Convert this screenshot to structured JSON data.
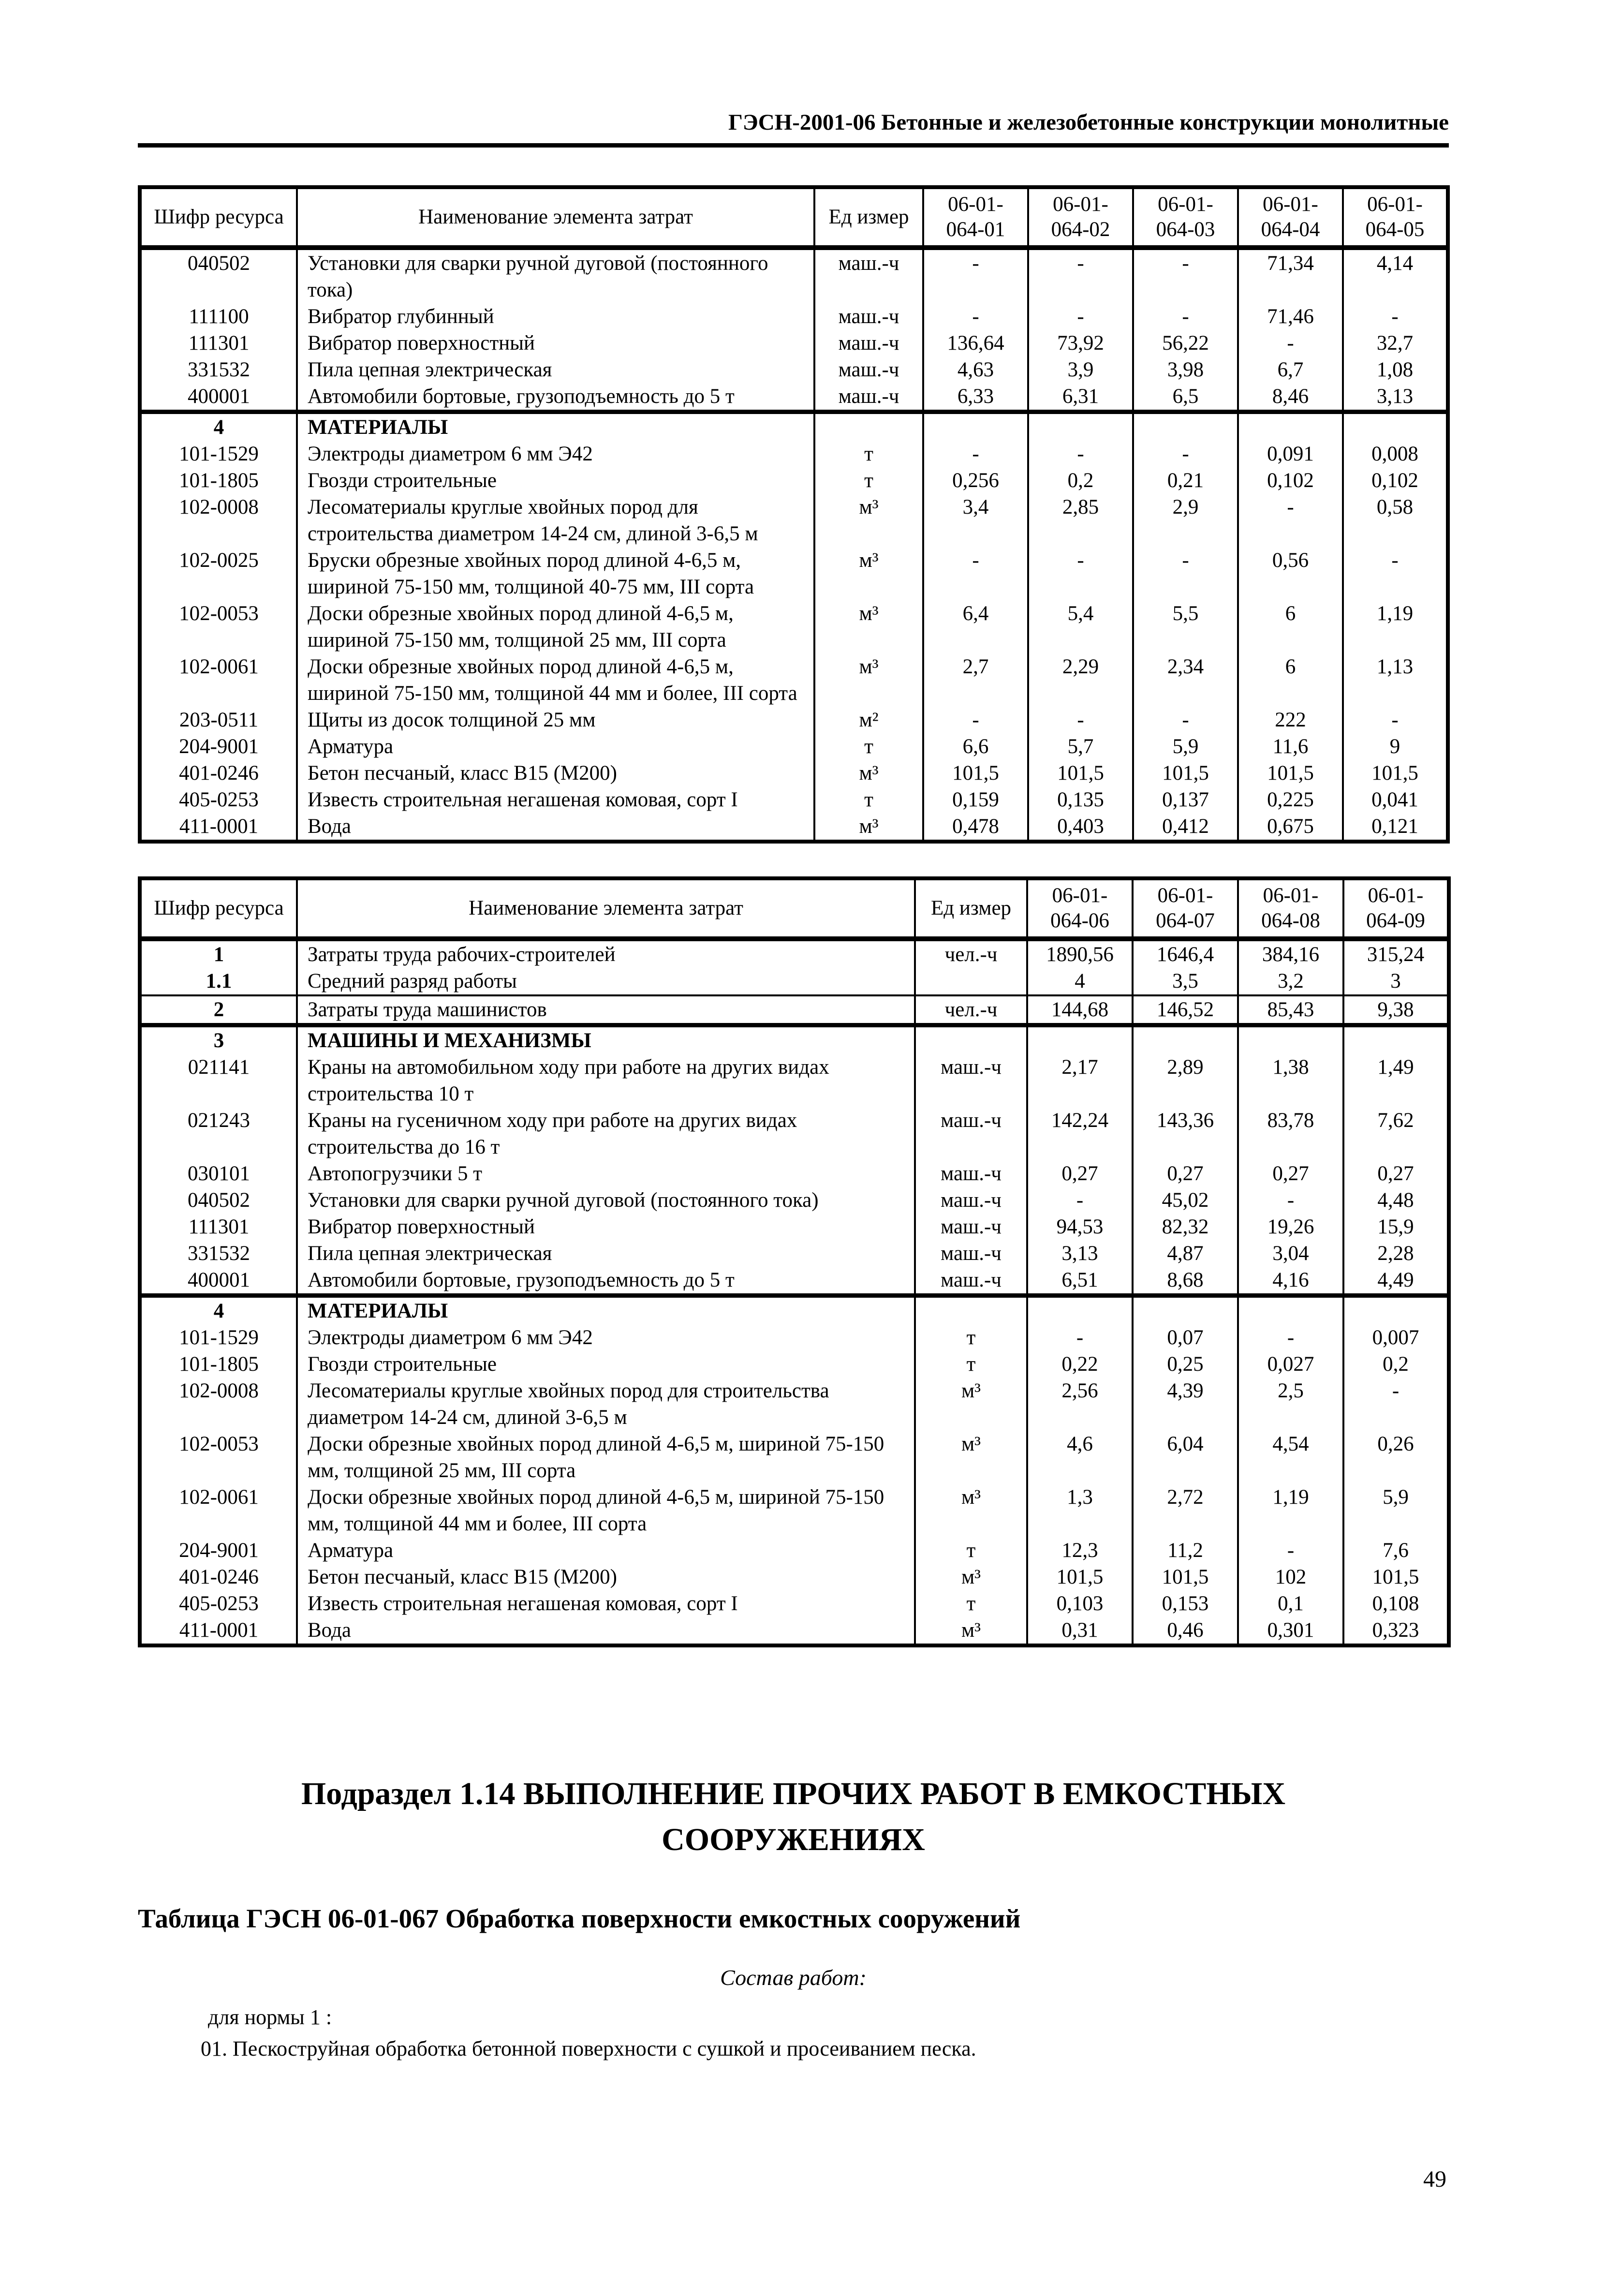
{
  "page": {
    "header_title": "ГЭСН-2001-06 Бетонные и железобетонные конструкции монолитные",
    "page_number": "49"
  },
  "tables": [
    {
      "headers": {
        "code": "Шифр ресурса",
        "name": "Наименование элемента затрат",
        "unit": "Ед измер"
      },
      "value_columns": [
        "06-01-\n064-01",
        "06-01-\n064-02",
        "06-01-\n064-03",
        "06-01-\n064-04",
        "06-01-\n064-05"
      ],
      "rows": [
        {
          "code": "040502",
          "name": "Установки для сварки ручной дуговой (постоянного тока)",
          "unit": "маш.-ч",
          "values": [
            "-",
            "-",
            "-",
            "71,34",
            "4,14"
          ]
        },
        {
          "code": "111100",
          "name": "Вибратор глубинный",
          "unit": "маш.-ч",
          "values": [
            "-",
            "-",
            "-",
            "71,46",
            "-"
          ]
        },
        {
          "code": "111301",
          "name": "Вибратор поверхностный",
          "unit": "маш.-ч",
          "values": [
            "136,64",
            "73,92",
            "56,22",
            "-",
            "32,7"
          ]
        },
        {
          "code": "331532",
          "name": "Пила цепная электрическая",
          "unit": "маш.-ч",
          "values": [
            "4,63",
            "3,9",
            "3,98",
            "6,7",
            "1,08"
          ]
        },
        {
          "code": "400001",
          "name": "Автомобили бортовые, грузоподъемность до 5 т",
          "unit": "маш.-ч",
          "values": [
            "6,33",
            "6,31",
            "6,5",
            "8,46",
            "3,13"
          ]
        },
        {
          "code": "4",
          "name": "МАТЕРИАЛЫ",
          "unit": "",
          "values": [
            "",
            "",
            "",
            "",
            ""
          ],
          "section": true,
          "border_top": "thick"
        },
        {
          "code": "101-1529",
          "name": "Электроды диаметром 6 мм Э42",
          "unit": "т",
          "values": [
            "-",
            "-",
            "-",
            "0,091",
            "0,008"
          ]
        },
        {
          "code": "101-1805",
          "name": "Гвозди строительные",
          "unit": "т",
          "values": [
            "0,256",
            "0,2",
            "0,21",
            "0,102",
            "0,102"
          ]
        },
        {
          "code": "102-0008",
          "name": "Лесоматериалы круглые хвойных пород для строительства диаметром 14-24 см, длиной 3-6,5 м",
          "unit": "м³",
          "values": [
            "3,4",
            "2,85",
            "2,9",
            "-",
            "0,58"
          ]
        },
        {
          "code": "102-0025",
          "name": "Бруски обрезные хвойных пород длиной 4-6,5 м, шириной 75-150 мм, толщиной 40-75 мм, III сорта",
          "unit": "м³",
          "values": [
            "-",
            "-",
            "-",
            "0,56",
            "-"
          ]
        },
        {
          "code": "102-0053",
          "name": "Доски обрезные хвойных пород длиной 4-6,5 м, шириной 75-150 мм, толщиной 25 мм, III сорта",
          "unit": "м³",
          "values": [
            "6,4",
            "5,4",
            "5,5",
            "6",
            "1,19"
          ]
        },
        {
          "code": "102-0061",
          "name": "Доски обрезные хвойных пород длиной 4-6,5 м, шириной 75-150 мм, толщиной 44 мм и более, III сорта",
          "unit": "м³",
          "values": [
            "2,7",
            "2,29",
            "2,34",
            "6",
            "1,13"
          ]
        },
        {
          "code": "203-0511",
          "name": "Щиты из досок толщиной 25 мм",
          "unit": "м²",
          "values": [
            "-",
            "-",
            "-",
            "222",
            "-"
          ]
        },
        {
          "code": "204-9001",
          "name": "Арматура",
          "unit": "т",
          "values": [
            "6,6",
            "5,7",
            "5,9",
            "11,6",
            "9"
          ]
        },
        {
          "code": "401-0246",
          "name": "Бетон песчаный, класс В15 (М200)",
          "unit": "м³",
          "values": [
            "101,5",
            "101,5",
            "101,5",
            "101,5",
            "101,5"
          ]
        },
        {
          "code": "405-0253",
          "name": "Известь строительная негашеная комовая, сорт I",
          "unit": "т",
          "values": [
            "0,159",
            "0,135",
            "0,137",
            "0,225",
            "0,041"
          ]
        },
        {
          "code": "411-0001",
          "name": "Вода",
          "unit": "м³",
          "values": [
            "0,478",
            "0,403",
            "0,412",
            "0,675",
            "0,121"
          ]
        }
      ]
    },
    {
      "headers": {
        "code": "Шифр ресурса",
        "name": "Наименование элемента затрат",
        "unit": "Ед измер"
      },
      "value_columns": [
        "06-01-\n064-06",
        "06-01-\n064-07",
        "06-01-\n064-08",
        "06-01-\n064-09"
      ],
      "rows": [
        {
          "code": "1",
          "name": "Затраты труда рабочих-строителей",
          "unit": "чел.-ч",
          "values": [
            "1890,56",
            "1646,4",
            "384,16",
            "315,24"
          ],
          "code_bold": true
        },
        {
          "code": "1.1",
          "name": "Средний разряд работы",
          "unit": "",
          "values": [
            "4",
            "3,5",
            "3,2",
            "3"
          ],
          "code_bold": true
        },
        {
          "code": "2",
          "name": "Затраты труда машинистов",
          "unit": "чел.-ч",
          "values": [
            "144,68",
            "146,52",
            "85,43",
            "9,38"
          ],
          "code_bold": true,
          "border_top": "thin"
        },
        {
          "code": "3",
          "name": "МАШИНЫ И МЕХАНИЗМЫ",
          "unit": "",
          "values": [
            "",
            "",
            "",
            ""
          ],
          "section": true,
          "border_top": "thick"
        },
        {
          "code": "021141",
          "name": "Краны на автомобильном ходу при работе на других видах строительства 10 т",
          "unit": "маш.-ч",
          "values": [
            "2,17",
            "2,89",
            "1,38",
            "1,49"
          ]
        },
        {
          "code": "021243",
          "name": "Краны на гусеничном ходу при работе на других видах строительства до 16 т",
          "unit": "маш.-ч",
          "values": [
            "142,24",
            "143,36",
            "83,78",
            "7,62"
          ]
        },
        {
          "code": "030101",
          "name": "Автопогрузчики 5 т",
          "unit": "маш.-ч",
          "values": [
            "0,27",
            "0,27",
            "0,27",
            "0,27"
          ]
        },
        {
          "code": "040502",
          "name": "Установки для сварки ручной дуговой (постоянного тока)",
          "unit": "маш.-ч",
          "values": [
            "-",
            "45,02",
            "-",
            "4,48"
          ]
        },
        {
          "code": "111301",
          "name": "Вибратор поверхностный",
          "unit": "маш.-ч",
          "values": [
            "94,53",
            "82,32",
            "19,26",
            "15,9"
          ]
        },
        {
          "code": "331532",
          "name": "Пила цепная электрическая",
          "unit": "маш.-ч",
          "values": [
            "3,13",
            "4,87",
            "3,04",
            "2,28"
          ]
        },
        {
          "code": "400001",
          "name": "Автомобили бортовые, грузоподъемность до 5 т",
          "unit": "маш.-ч",
          "values": [
            "6,51",
            "8,68",
            "4,16",
            "4,49"
          ]
        },
        {
          "code": "4",
          "name": "МАТЕРИАЛЫ",
          "unit": "",
          "values": [
            "",
            "",
            "",
            ""
          ],
          "section": true,
          "border_top": "thick"
        },
        {
          "code": "101-1529",
          "name": "Электроды диаметром 6 мм Э42",
          "unit": "т",
          "values": [
            "-",
            "0,07",
            "-",
            "0,007"
          ]
        },
        {
          "code": "101-1805",
          "name": "Гвозди строительные",
          "unit": "т",
          "values": [
            "0,22",
            "0,25",
            "0,027",
            "0,2"
          ]
        },
        {
          "code": "102-0008",
          "name": "Лесоматериалы круглые хвойных пород для строительства диаметром 14-24 см, длиной 3-6,5 м",
          "unit": "м³",
          "values": [
            "2,56",
            "4,39",
            "2,5",
            "-"
          ]
        },
        {
          "code": "102-0053",
          "name": "Доски обрезные хвойных пород длиной 4-6,5 м, шириной 75-150 мм, толщиной 25 мм, III сорта",
          "unit": "м³",
          "values": [
            "4,6",
            "6,04",
            "4,54",
            "0,26"
          ]
        },
        {
          "code": "102-0061",
          "name": "Доски обрезные хвойных пород длиной 4-6,5 м, шириной 75-150 мм, толщиной 44 мм и более, III сорта",
          "unit": "м³",
          "values": [
            "1,3",
            "2,72",
            "1,19",
            "5,9"
          ]
        },
        {
          "code": "204-9001",
          "name": "Арматура",
          "unit": "т",
          "values": [
            "12,3",
            "11,2",
            "-",
            "7,6"
          ]
        },
        {
          "code": "401-0246",
          "name": "Бетон песчаный, класс В15 (М200)",
          "unit": "м³",
          "values": [
            "101,5",
            "101,5",
            "102",
            "101,5"
          ]
        },
        {
          "code": "405-0253",
          "name": "Известь строительная негашеная комовая, сорт I",
          "unit": "т",
          "values": [
            "0,103",
            "0,153",
            "0,1",
            "0,108"
          ]
        },
        {
          "code": "411-0001",
          "name": "Вода",
          "unit": "м³",
          "values": [
            "0,31",
            "0,46",
            "0,301",
            "0,323"
          ]
        }
      ]
    }
  ],
  "bottom": {
    "subsection_heading": "Подраздел 1.14 ВЫПОЛНЕНИЕ ПРОЧИХ РАБОТ В ЕМКОСТНЫХ\nСООРУЖЕНИЯХ",
    "table_heading": "Таблица ГЭСН 06-01-067 Обработка поверхности емкостных сооружений",
    "works_title": "Состав работ:",
    "norm_label": "для нормы 1 :",
    "work_items": [
      "01. Пескоструйная обработка бетонной поверхности с сушкой и просеиванием песка."
    ]
  }
}
